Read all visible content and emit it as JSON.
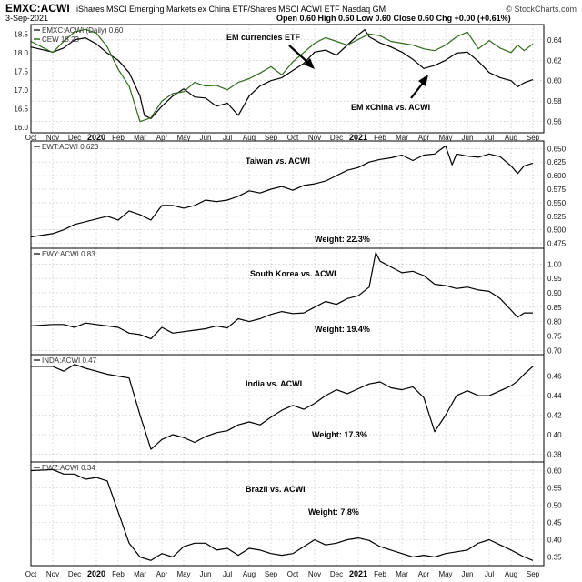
{
  "header": {
    "symbol": "EMXC:ACWI",
    "description": "iShares MSCI Emerging Markets ex China ETF/Shares MSCI ACWI ETF  Nasdaq GM",
    "date": "3-Sep-2021",
    "ohlc": "Open 0.60  High 0.60  Low 0.60  Close 0.60  Chg +0.00 (+0.61%)",
    "watermark": "© StockCharts.com"
  },
  "x_axis": {
    "labels": [
      "Oct",
      "Nov",
      "Dec",
      "2020",
      "Feb",
      "Mar",
      "Apr",
      "May",
      "Jun",
      "Jul",
      "Aug",
      "Sep",
      "Oct",
      "Nov",
      "Dec",
      "2021",
      "Feb",
      "Mar",
      "Apr",
      "May",
      "Jun",
      "Jul",
      "Aug",
      "Sep"
    ],
    "year_labels": [
      "2020",
      "2021"
    ],
    "x_range": [
      0,
      23.5
    ]
  },
  "colors": {
    "ratio_line": "#000000",
    "etf_line": "#2e6b1a",
    "grid": "#c8c8c8",
    "frame": "#000000"
  },
  "chart_data": [
    {
      "type": "line",
      "panel_label": "EMXC:ACWI (Daily) 0.60",
      "legend": "CEW 18.23",
      "annotations": [
        {
          "text": "EM currencies ETF",
          "arrow": "diag"
        },
        {
          "text": "EM xChina vs. ACWI",
          "arrow": "up"
        }
      ],
      "left_axis": {
        "ticks": [
          "18.5",
          "18.0",
          "17.5",
          "17.0",
          "16.5",
          "16.0"
        ],
        "range": [
          15.85,
          18.75
        ]
      },
      "right_axis": {
        "ticks": [
          "0.64",
          "0.62",
          "0.60",
          "0.58",
          "0.56"
        ],
        "range": [
          0.549,
          0.655
        ]
      },
      "series": [
        {
          "name": "EMXC:ACWI",
          "axis": "right",
          "color": "#000000",
          "x": [
            0,
            1,
            1.5,
            2,
            2.5,
            3,
            3.5,
            4,
            4.5,
            5,
            5.2,
            5.5,
            6,
            6.5,
            7,
            7.5,
            8,
            8.5,
            9,
            9.5,
            10,
            10.5,
            11,
            11.5,
            12,
            12.5,
            13,
            13.5,
            14,
            14.5,
            15,
            15.3,
            15.5,
            16,
            16.5,
            17,
            17.5,
            18,
            18.5,
            19,
            19.5,
            20,
            20.5,
            21,
            21.5,
            22,
            22.3,
            22.6,
            23
          ],
          "y": [
            0.633,
            0.628,
            0.632,
            0.64,
            0.642,
            0.636,
            0.627,
            0.62,
            0.608,
            0.585,
            0.566,
            0.563,
            0.575,
            0.585,
            0.592,
            0.584,
            0.583,
            0.575,
            0.578,
            0.566,
            0.585,
            0.595,
            0.6,
            0.603,
            0.61,
            0.617,
            0.628,
            0.63,
            0.625,
            0.635,
            0.645,
            0.65,
            0.643,
            0.637,
            0.633,
            0.628,
            0.621,
            0.612,
            0.615,
            0.62,
            0.627,
            0.628,
            0.619,
            0.608,
            0.603,
            0.6,
            0.594,
            0.598,
            0.601
          ]
        },
        {
          "name": "CEW",
          "axis": "left",
          "color": "#2e6b1a",
          "x": [
            0,
            1,
            1.5,
            2,
            2.5,
            3,
            3.5,
            4,
            4.5,
            5,
            5.5,
            6,
            6.5,
            7,
            7.5,
            8,
            8.5,
            9,
            9.5,
            10,
            10.5,
            11,
            11.5,
            12,
            12.5,
            13,
            13.5,
            14,
            14.5,
            15,
            15.5,
            16,
            16.5,
            17,
            17.5,
            18,
            18.5,
            19,
            19.5,
            20,
            20.5,
            21,
            21.5,
            22,
            22.3,
            22.6,
            23
          ],
          "y": [
            18.3,
            18.0,
            18.3,
            18.55,
            18.62,
            18.52,
            18.15,
            17.55,
            17.1,
            16.15,
            16.25,
            16.7,
            16.9,
            16.95,
            17.2,
            17.1,
            17.12,
            17.0,
            17.2,
            17.3,
            17.45,
            17.62,
            17.4,
            17.75,
            18.0,
            18.25,
            18.4,
            18.3,
            18.2,
            18.35,
            18.5,
            18.45,
            18.3,
            18.25,
            18.2,
            18.1,
            18.05,
            18.2,
            18.42,
            18.55,
            18.1,
            18.32,
            18.12,
            18.0,
            18.2,
            18.05,
            18.23
          ]
        }
      ]
    },
    {
      "type": "line",
      "panel_label": "EWT:ACWI 0.623",
      "title": "Taiwan vs. ACWI",
      "weight": "Weight: 22.3%",
      "right_axis": {
        "ticks": [
          "0.650",
          "0.625",
          "0.600",
          "0.575",
          "0.550",
          "0.525",
          "0.500",
          "0.475"
        ],
        "range": [
          0.466,
          0.664
        ]
      },
      "series": [
        {
          "name": "EWT:ACWI",
          "color": "#000000",
          "x": [
            0,
            1,
            1.5,
            2,
            2.5,
            3,
            3.5,
            4,
            4.5,
            5,
            5.5,
            6,
            6.5,
            7,
            7.5,
            8,
            8.5,
            9,
            9.5,
            10,
            10.5,
            11,
            11.5,
            12,
            12.5,
            13,
            13.5,
            14,
            14.5,
            15,
            15.5,
            16,
            16.5,
            17,
            17.5,
            18,
            18.5,
            19,
            19.3,
            19.5,
            20,
            20.5,
            21,
            21.5,
            22,
            22.3,
            22.6,
            23
          ],
          "y": [
            0.487,
            0.493,
            0.5,
            0.51,
            0.515,
            0.52,
            0.525,
            0.518,
            0.535,
            0.528,
            0.518,
            0.545,
            0.545,
            0.54,
            0.545,
            0.555,
            0.552,
            0.555,
            0.562,
            0.572,
            0.568,
            0.575,
            0.58,
            0.573,
            0.582,
            0.585,
            0.59,
            0.6,
            0.61,
            0.615,
            0.625,
            0.63,
            0.633,
            0.638,
            0.628,
            0.638,
            0.64,
            0.655,
            0.62,
            0.64,
            0.636,
            0.634,
            0.64,
            0.635,
            0.618,
            0.604,
            0.618,
            0.623
          ]
        }
      ]
    },
    {
      "type": "line",
      "panel_label": "EWY:ACWI 0.83",
      "title": "South Korea vs. ACWI",
      "weight": "Weight: 19.4%",
      "right_axis": {
        "ticks": [
          "1.00",
          "0.95",
          "0.90",
          "0.85",
          "0.80",
          "0.75",
          "0.70"
        ],
        "range": [
          0.685,
          1.055
        ]
      },
      "series": [
        {
          "name": "EWY:ACWI",
          "color": "#000000",
          "x": [
            0,
            1,
            1.5,
            2,
            2.5,
            3,
            3.5,
            4,
            4.5,
            5,
            5.5,
            6,
            6.5,
            7,
            7.5,
            8,
            8.5,
            9,
            9.5,
            10,
            10.5,
            11,
            11.5,
            12,
            12.5,
            13,
            13.5,
            14,
            14.5,
            15,
            15.5,
            15.8,
            16,
            16.5,
            17,
            17.5,
            18,
            18.5,
            19,
            19.5,
            20,
            20.5,
            21,
            21.5,
            22,
            22.3,
            22.6,
            23
          ],
          "y": [
            0.785,
            0.79,
            0.79,
            0.78,
            0.795,
            0.79,
            0.785,
            0.78,
            0.76,
            0.755,
            0.74,
            0.78,
            0.76,
            0.765,
            0.77,
            0.775,
            0.785,
            0.778,
            0.81,
            0.8,
            0.81,
            0.825,
            0.835,
            0.828,
            0.83,
            0.85,
            0.87,
            0.86,
            0.88,
            0.89,
            0.92,
            1.04,
            1.01,
            0.99,
            0.97,
            0.975,
            0.96,
            0.93,
            0.925,
            0.915,
            0.92,
            0.91,
            0.905,
            0.88,
            0.84,
            0.815,
            0.83,
            0.83
          ]
        }
      ]
    },
    {
      "type": "line",
      "panel_label": "INDA:ACWI 0.47",
      "title": "India vs. ACWI",
      "weight": "Weight: 17.3%",
      "right_axis": {
        "ticks": [
          "0.46",
          "0.44",
          "0.42",
          "0.40",
          "0.38"
        ],
        "range": [
          0.372,
          0.482
        ]
      },
      "series": [
        {
          "name": "INDA:ACWI",
          "color": "#000000",
          "x": [
            0,
            1,
            1.5,
            2,
            2.5,
            3,
            3.5,
            4,
            4.5,
            5,
            5.5,
            6,
            6.5,
            7,
            7.5,
            8,
            8.5,
            9,
            9.5,
            10,
            10.5,
            11,
            11.5,
            12,
            12.5,
            13,
            13.5,
            14,
            14.5,
            15,
            15.5,
            16,
            16.5,
            17,
            17.5,
            18,
            18.5,
            19,
            19.5,
            20,
            20.5,
            21,
            21.5,
            22,
            22.3,
            22.6,
            23
          ],
          "y": [
            0.47,
            0.47,
            0.465,
            0.472,
            0.468,
            0.465,
            0.462,
            0.46,
            0.458,
            0.42,
            0.385,
            0.395,
            0.4,
            0.397,
            0.392,
            0.398,
            0.402,
            0.404,
            0.41,
            0.413,
            0.41,
            0.418,
            0.425,
            0.43,
            0.426,
            0.432,
            0.44,
            0.446,
            0.442,
            0.447,
            0.452,
            0.454,
            0.448,
            0.446,
            0.449,
            0.438,
            0.403,
            0.42,
            0.44,
            0.445,
            0.44,
            0.44,
            0.445,
            0.45,
            0.455,
            0.462,
            0.47
          ]
        }
      ]
    },
    {
      "type": "line",
      "panel_label": "EWZ:ACWI 0.34",
      "title": "Brazil vs. ACWI",
      "weight": "Weight: 7.8%",
      "right_axis": {
        "ticks": [
          "0.60",
          "0.55",
          "0.50",
          "0.45",
          "0.40",
          "0.35"
        ],
        "range": [
          0.325,
          0.625
        ]
      },
      "series": [
        {
          "name": "EWZ:ACWI",
          "color": "#000000",
          "x": [
            0,
            1,
            1.5,
            2,
            2.5,
            3,
            3.5,
            4,
            4.5,
            5,
            5.5,
            6,
            6.5,
            7,
            7.5,
            8,
            8.5,
            9,
            9.5,
            10,
            10.5,
            11,
            11.5,
            12,
            12.5,
            13,
            13.5,
            14,
            14.5,
            15,
            15.5,
            16,
            16.5,
            17,
            17.5,
            18,
            18.5,
            19,
            19.5,
            20,
            20.5,
            21,
            21.5,
            22,
            22.3,
            22.6,
            23
          ],
          "y": [
            0.6,
            0.603,
            0.59,
            0.59,
            0.575,
            0.58,
            0.57,
            0.48,
            0.39,
            0.35,
            0.34,
            0.36,
            0.35,
            0.38,
            0.39,
            0.39,
            0.37,
            0.375,
            0.355,
            0.375,
            0.37,
            0.36,
            0.355,
            0.36,
            0.38,
            0.4,
            0.385,
            0.39,
            0.4,
            0.405,
            0.398,
            0.38,
            0.37,
            0.36,
            0.35,
            0.355,
            0.35,
            0.36,
            0.365,
            0.37,
            0.39,
            0.4,
            0.385,
            0.37,
            0.36,
            0.35,
            0.34
          ]
        }
      ]
    }
  ]
}
